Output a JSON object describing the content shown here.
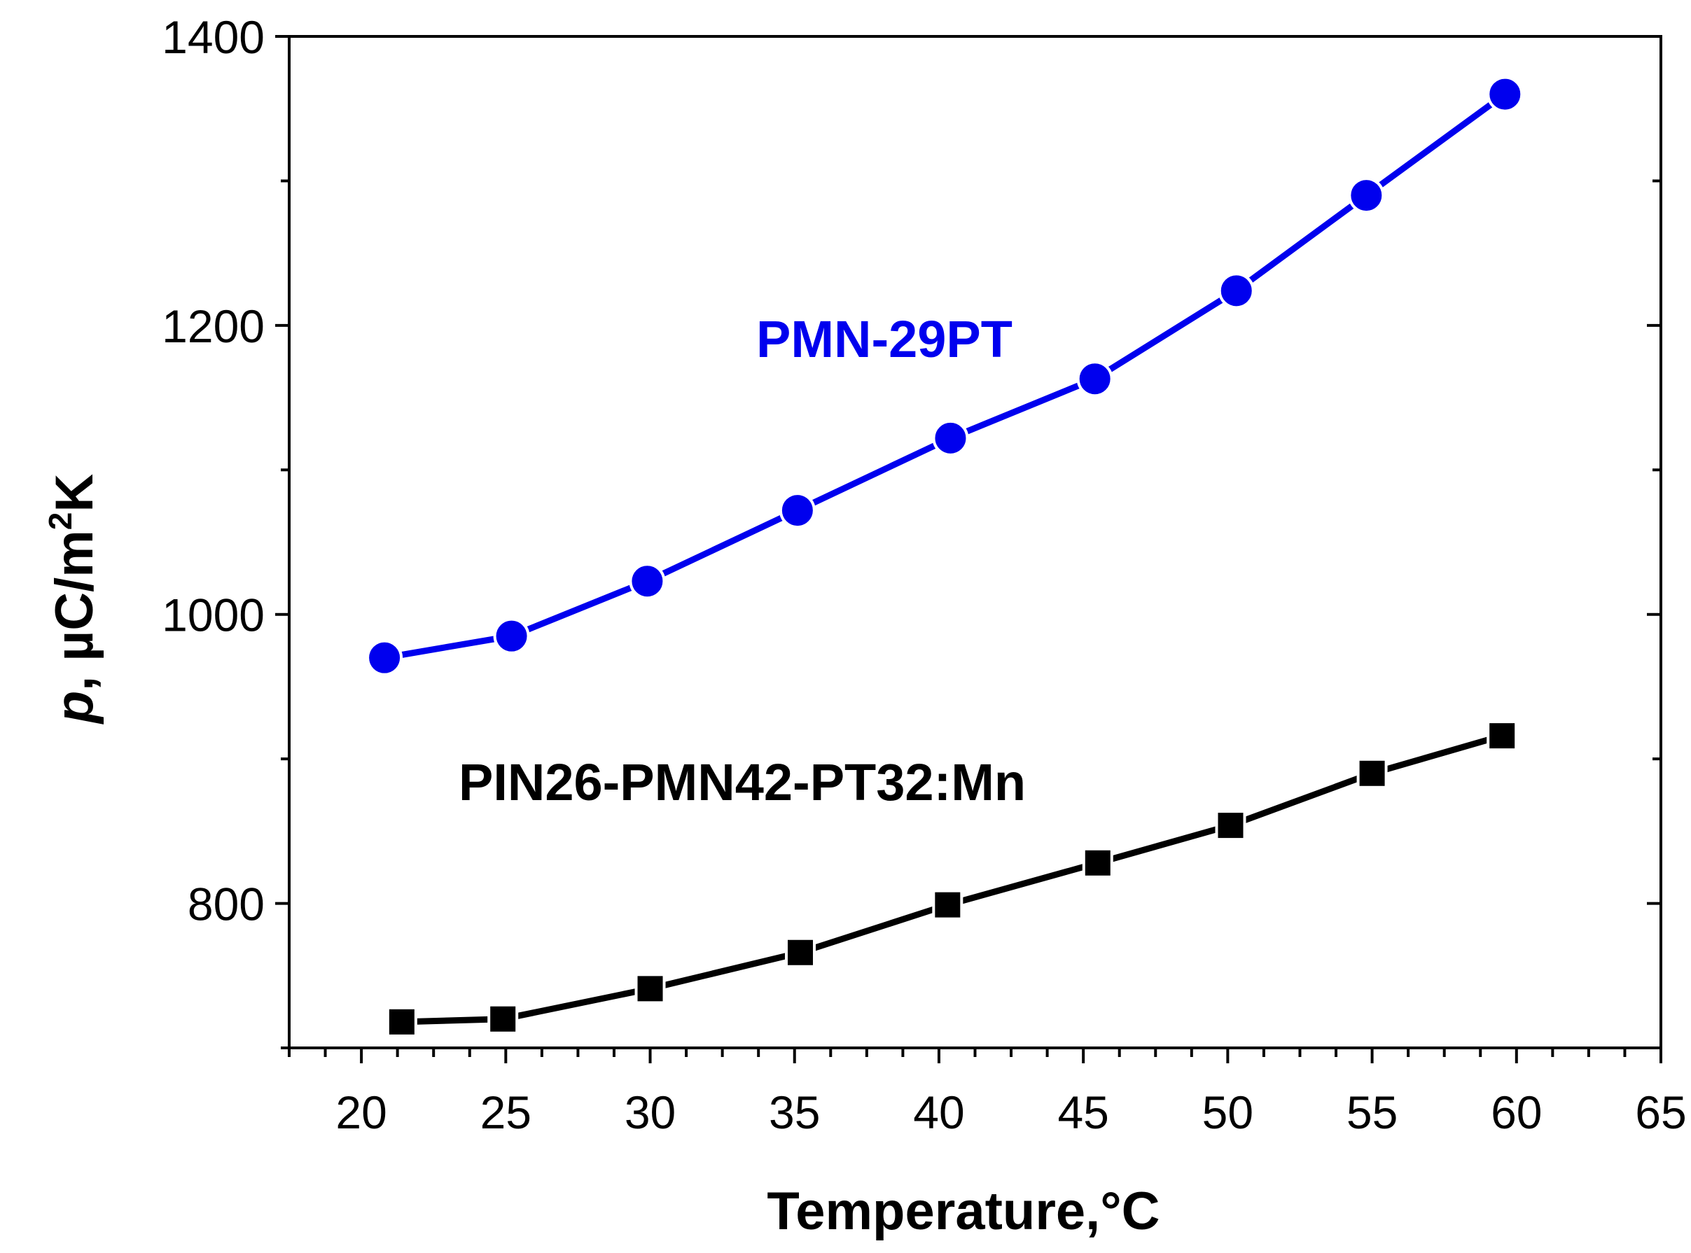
{
  "chart_data": {
    "type": "line",
    "title": "",
    "xlabel": "Temperature,°C",
    "ylabel": {
      "var": "p",
      "sep": ", ",
      "unit": "µC/m",
      "sup": "2",
      "unit_end": "K"
    },
    "xlim": [
      17.5,
      65
    ],
    "ylim": [
      700,
      1400
    ],
    "x_major_ticks": [
      20,
      25,
      30,
      35,
      40,
      45,
      50,
      55,
      60,
      65
    ],
    "x_tick_labels": [
      "20",
      "25",
      "30",
      "35",
      "40",
      "45",
      "50",
      "55",
      "60",
      "65"
    ],
    "x_minor_step": 1.25,
    "y_major_ticks": [
      800,
      1000,
      1200,
      1400
    ],
    "y_tick_labels": [
      "800",
      "1000",
      "1200",
      "1400"
    ],
    "y_minor_ticks": [
      700,
      900,
      1100,
      1300
    ],
    "grid": false,
    "series": [
      {
        "name": "PMN-29PT",
        "color": "#0000ee",
        "marker": "circle",
        "x": [
          20.8,
          25.2,
          29.9,
          35.1,
          40.4,
          45.4,
          50.3,
          54.8,
          59.6
        ],
        "values": [
          970,
          985,
          1023,
          1072,
          1122,
          1163,
          1224,
          1290,
          1360
        ]
      },
      {
        "name": "PIN26-PMN42-PT32:Mn",
        "color": "#000000",
        "marker": "square",
        "x": [
          21.4,
          24.9,
          30.0,
          35.2,
          40.3,
          45.5,
          50.1,
          55.0,
          59.5
        ],
        "values": [
          718,
          720,
          741,
          766,
          799,
          828,
          854,
          890,
          916
        ]
      }
    ]
  }
}
